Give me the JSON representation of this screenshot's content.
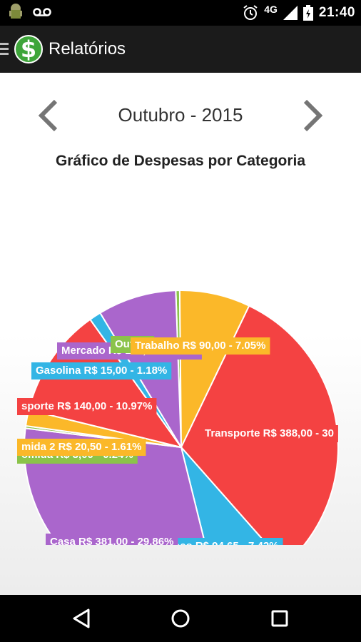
{
  "status_bar": {
    "time": "21:40",
    "network": "4G",
    "icons": [
      "android-icon",
      "voicemail-icon",
      "alarm-icon",
      "signal-icon",
      "battery-icon"
    ]
  },
  "action_bar": {
    "title": "Relatórios",
    "logo_symbol": "$",
    "menu_icon": "hamburger-icon"
  },
  "month_nav": {
    "label": "Outubro - 2015",
    "prev_icon": "chevron-left-icon",
    "next_icon": "chevron-right-icon"
  },
  "chart_data": {
    "type": "pie",
    "title": "Gráfico de Despesas por Categoria",
    "slices": [
      {
        "name": "Outros",
        "label": "Outros",
        "value": 5.0,
        "percent": 0.39,
        "color": "#8BC34A"
      },
      {
        "name": "Trabalho",
        "label": "Trabalho R$ 90,00 - 7.05%",
        "value": 90.0,
        "percent": 7.05,
        "color": "#FBB829"
      },
      {
        "name": "Transporte",
        "label": "Transporte R$ 388,00 - 30",
        "value": 388.0,
        "percent": 30.4,
        "color": "#F44242"
      },
      {
        "name": "Almoço",
        "label": "oço R$ 94,65 - 7.42%",
        "value": 94.65,
        "percent": 7.42,
        "color": "#33B5E5"
      },
      {
        "name": "Casa",
        "label": "Casa R$ 381,00 - 29.86%",
        "value": 381.0,
        "percent": 29.86,
        "color": "#AA66CC"
      },
      {
        "name": "Comida",
        "label": "omida R$ 3,00 - 0.24%",
        "value": 3.0,
        "percent": 0.24,
        "color": "#8BC34A"
      },
      {
        "name": "Comida 2",
        "label": "mida 2 R$ 20,50 - 1.61%",
        "value": 20.5,
        "percent": 1.61,
        "color": "#FBB829"
      },
      {
        "name": "Esporte",
        "label": "sporte R$ 140,00 - 10.97%",
        "value": 140.0,
        "percent": 10.97,
        "color": "#F44242"
      },
      {
        "name": "Gasolina",
        "label": "Gasolina R$ 15,00 - 1.18%",
        "value": 15.0,
        "percent": 1.18,
        "color": "#33B5E5"
      },
      {
        "name": "Mercado",
        "label": "Mercado R$ 100,00 - 7.84%",
        "value": 100.0,
        "percent": 7.84,
        "color": "#AA66CC"
      }
    ]
  },
  "nav_bar": {
    "icons": [
      "back-icon",
      "home-icon",
      "recents-icon"
    ]
  }
}
